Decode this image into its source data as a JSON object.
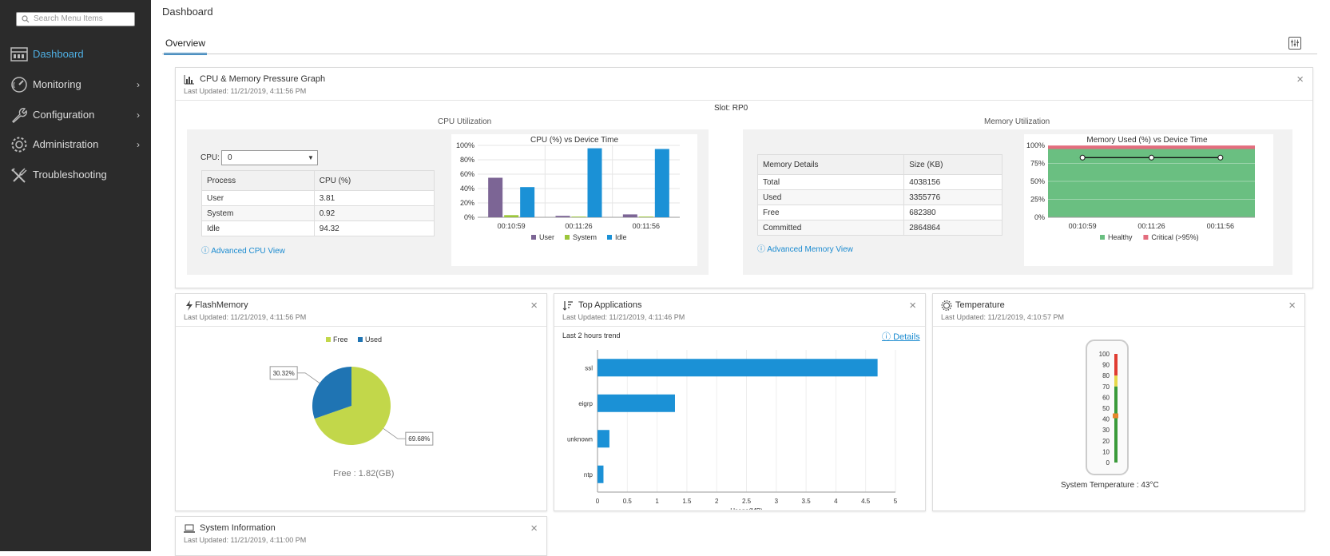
{
  "sidebar": {
    "search_placeholder": "Search Menu Items",
    "items": [
      {
        "label": "Dashboard",
        "icon": "dashboard-icon",
        "active": true,
        "has_children": false
      },
      {
        "label": "Monitoring",
        "icon": "gauge-icon",
        "active": false,
        "has_children": true
      },
      {
        "label": "Configuration",
        "icon": "wrench-icon",
        "active": false,
        "has_children": true
      },
      {
        "label": "Administration",
        "icon": "gear-icon",
        "active": false,
        "has_children": true
      },
      {
        "label": "Troubleshooting",
        "icon": "tools-icon",
        "active": false,
        "has_children": false
      }
    ],
    "chevron": "›"
  },
  "header": {
    "title": "Dashboard",
    "tabs": [
      {
        "label": "Overview",
        "active": true
      }
    ]
  },
  "cpu_mem": {
    "title": "CPU & Memory Pressure Graph",
    "updated": "Last Updated: 11/21/2019, 4:11:56 PM",
    "close": "×",
    "slot": "Slot: RP0",
    "cpu_section": "CPU Utilization",
    "mem_section": "Memory Utilization",
    "cpu_label": "CPU:",
    "cpu_select": "0",
    "cpu_table": {
      "headers": [
        "Process",
        "CPU (%)"
      ],
      "rows": [
        [
          "User",
          "3.81"
        ],
        [
          "System",
          "0.92"
        ],
        [
          "Idle",
          "94.32"
        ]
      ]
    },
    "cpu_link": "Advanced CPU View",
    "mem_table": {
      "headers": [
        "Memory Details",
        "Size (KB)"
      ],
      "rows": [
        [
          "Total",
          "4038156"
        ],
        [
          "Used",
          "3355776"
        ],
        [
          "Free",
          "682380"
        ],
        [
          "Committed",
          "2864864"
        ]
      ]
    },
    "mem_link": "Advanced Memory View"
  },
  "flash": {
    "title": "FlashMemory",
    "updated": "Last Updated: 11/21/2019, 4:11:56 PM",
    "close": "×",
    "free_text": "Free : 1.82(GB)"
  },
  "top_apps": {
    "title": "Top Applications",
    "updated": "Last Updated: 11/21/2019, 4:11:46 PM",
    "close": "×",
    "trend": "Last 2 hours trend",
    "details": "Details"
  },
  "temperature": {
    "title": "Temperature",
    "updated": "Last Updated: 11/21/2019, 4:10:57 PM",
    "close": "×",
    "caption": "System Temperature : 43°C",
    "value": 43,
    "scale": [
      "100",
      "90",
      "80",
      "70",
      "60",
      "50",
      "40",
      "30",
      "20",
      "10",
      "0"
    ]
  },
  "sysinfo": {
    "title": "System Information",
    "updated": "Last Updated: 11/21/2019, 4:11:00 PM",
    "close": "×"
  },
  "colors": {
    "sidebar_bg": "#2b2b2b",
    "accent": "#1b8bd0",
    "user": "#7c6595",
    "system": "#9cc63b",
    "idle": "#1b91d6",
    "healthy": "#6abf81",
    "critical": "#e36d7e",
    "flash_free": "#c2d74a",
    "flash_used": "#1f74b3"
  },
  "chart_data": [
    {
      "type": "bar",
      "title": "CPU (%) vs Device Time",
      "categories": [
        "00:10:59",
        "00:11:26",
        "00:11:56"
      ],
      "series": [
        {
          "name": "User",
          "values": [
            55,
            2,
            4
          ]
        },
        {
          "name": "System",
          "values": [
            3,
            1,
            1
          ]
        },
        {
          "name": "Idle",
          "values": [
            42,
            96,
            95
          ]
        }
      ],
      "yticks": [
        "0%",
        "20%",
        "40%",
        "60%",
        "80%",
        "100%"
      ],
      "ylim": [
        0,
        100
      ],
      "legend": "bottom"
    },
    {
      "type": "area",
      "title": "Memory Used (%) vs Device Time",
      "categories": [
        "00:10:59",
        "00:11:26",
        "00:11:56"
      ],
      "series": [
        {
          "name": "Healthy",
          "values": [
            95,
            95,
            95
          ]
        },
        {
          "name": "Critical (>95%)",
          "values": [
            5,
            5,
            5
          ]
        }
      ],
      "line_values": [
        83,
        83,
        83
      ],
      "yticks": [
        "0%",
        "25%",
        "50%",
        "75%",
        "100%"
      ],
      "ylim": [
        0,
        100
      ],
      "legend": "bottom"
    },
    {
      "type": "pie",
      "series": [
        {
          "name": "Free",
          "value": 69.68,
          "label": "69.68%"
        },
        {
          "name": "Used",
          "value": 30.32,
          "label": "30.32%"
        }
      ],
      "legend": "top"
    },
    {
      "type": "bar",
      "orientation": "horizontal",
      "categories": [
        "ssl",
        "eigrp",
        "unknown",
        "ntp"
      ],
      "values": [
        4.7,
        1.3,
        0.2,
        0.1
      ],
      "xlabel": "Usage(MB)",
      "xticks": [
        "0",
        "0.5",
        "1",
        "1.5",
        "2",
        "2.5",
        "3",
        "3.5",
        "4",
        "4.5",
        "5"
      ],
      "xlim": [
        0,
        5
      ]
    }
  ]
}
